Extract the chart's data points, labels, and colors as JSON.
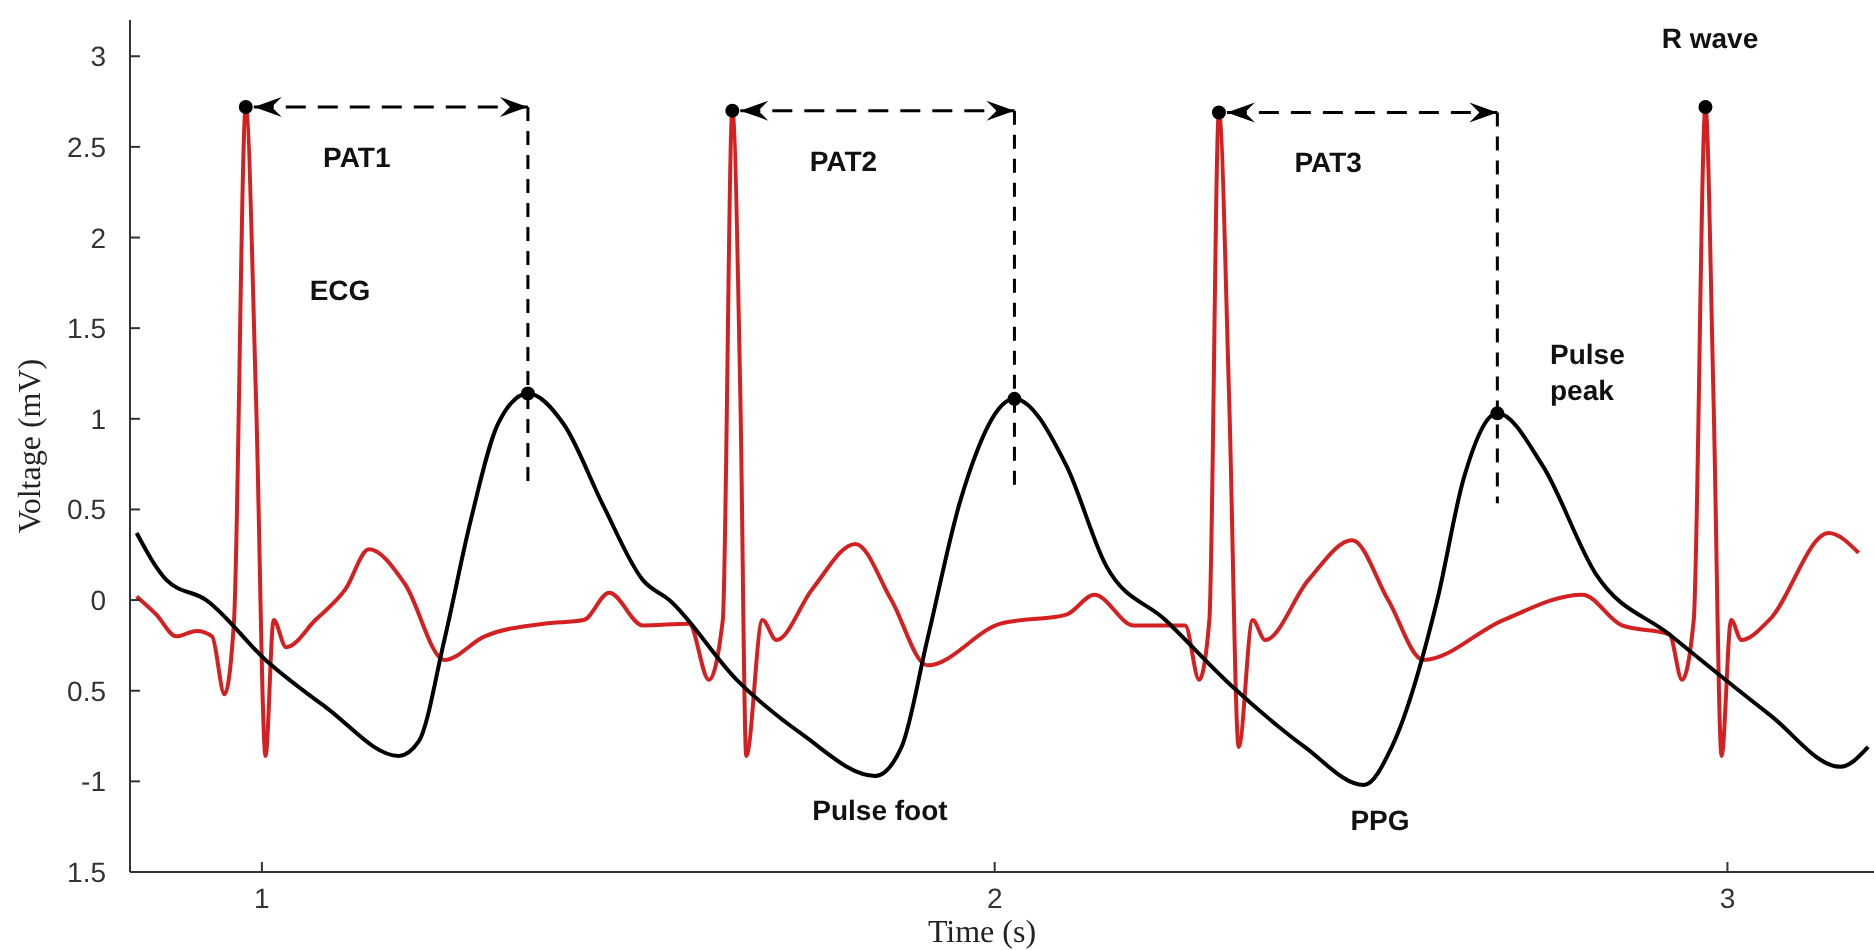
{
  "chart_data": {
    "type": "line",
    "xlabel": "Time (s)",
    "ylabel": "Voltage (mV)",
    "xlim": [
      0.82,
      3.2
    ],
    "ylim": [
      -1.5,
      3.2
    ],
    "xticks": [
      1,
      2,
      3
    ],
    "yticks": [
      {
        "value": -1.5,
        "label": "1.5"
      },
      -1,
      {
        "value": -0.5,
        "label": "0.5"
      },
      0,
      0.5,
      1,
      1.5,
      2,
      2.5,
      3
    ],
    "grid": false,
    "marker": "none",
    "line_style": "solid",
    "series": [
      {
        "color": "#d42020",
        "x": [
          0.829,
          0.856,
          0.883,
          0.911,
          0.932,
          0.949,
          0.962,
          0.978,
          0.992,
          1.005,
          1.016,
          1.033,
          1.073,
          1.114,
          1.146,
          1.195,
          1.249,
          1.304,
          1.385,
          1.439,
          1.474,
          1.52,
          1.583,
          1.61,
          1.629,
          1.642,
          1.653,
          1.661,
          1.683,
          1.702,
          1.751,
          1.81,
          1.859,
          1.908,
          2.008,
          2.098,
          2.136,
          2.19,
          2.26,
          2.279,
          2.293,
          2.306,
          2.32,
          2.333,
          2.352,
          2.369,
          2.428,
          2.488,
          2.537,
          2.585,
          2.694,
          2.802,
          2.856,
          2.921,
          2.938,
          2.954,
          2.97,
          2.981,
          2.992,
          3.005,
          3.019,
          3.057,
          3.138,
          3.179
        ],
        "values": [
          0.02,
          -0.08,
          -0.2,
          -0.17,
          -0.2,
          -0.52,
          -0.11,
          2.72,
          1.11,
          -0.86,
          -0.11,
          -0.26,
          -0.11,
          0.06,
          0.28,
          0.09,
          -0.33,
          -0.2,
          -0.13,
          -0.11,
          0.04,
          -0.14,
          -0.13,
          -0.44,
          -0.11,
          2.7,
          1.11,
          -0.86,
          -0.11,
          -0.22,
          0.06,
          0.31,
          0.0,
          -0.36,
          -0.13,
          -0.08,
          0.03,
          -0.14,
          -0.14,
          -0.44,
          -0.11,
          2.69,
          1.11,
          -0.81,
          -0.11,
          -0.22,
          0.11,
          0.33,
          0.0,
          -0.33,
          -0.11,
          0.03,
          -0.14,
          -0.19,
          -0.44,
          -0.11,
          2.72,
          1.11,
          -0.86,
          -0.11,
          -0.22,
          -0.11,
          0.37,
          0.26
        ]
      },
      {
        "color": "#000000",
        "x": [
          0.829,
          0.87,
          0.924,
          1.005,
          1.087,
          1.187,
          1.214,
          1.249,
          1.285,
          1.322,
          1.363,
          1.412,
          1.466,
          1.52,
          1.556,
          1.648,
          1.737,
          1.837,
          1.873,
          1.908,
          1.954,
          2.027,
          2.098,
          2.152,
          2.233,
          2.325,
          2.388,
          2.423,
          2.504,
          2.542,
          2.604,
          2.64,
          2.686,
          2.748,
          2.821,
          2.921,
          3.057,
          3.154,
          3.192
        ],
        "values": [
          0.37,
          0.11,
          0.0,
          -0.33,
          -0.59,
          -0.86,
          -0.78,
          -0.22,
          0.44,
          0.97,
          1.14,
          0.97,
          0.52,
          0.11,
          0.0,
          -0.44,
          -0.74,
          -0.97,
          -0.81,
          -0.22,
          0.56,
          1.11,
          0.74,
          0.19,
          -0.11,
          -0.48,
          -0.7,
          -0.81,
          -1.02,
          -0.81,
          0.0,
          0.67,
          1.03,
          0.74,
          0.14,
          -0.19,
          -0.63,
          -0.92,
          -0.81
        ]
      }
    ],
    "annotations": [
      "PAT1",
      "PAT2",
      "PAT3",
      "ECG",
      "Pulse foot",
      "PPG",
      "Pulse\npeak",
      "R wave"
    ]
  }
}
